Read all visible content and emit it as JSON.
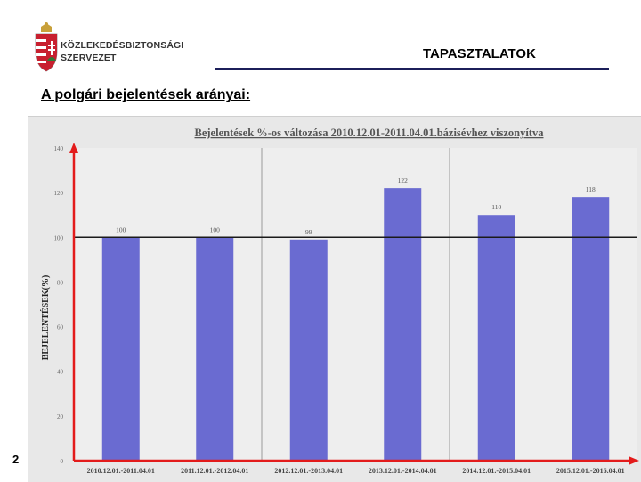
{
  "header": {
    "org_line1": "KÖZLEKEDÉSBIZTONSÁGI",
    "org_line2": "SZERVEZET",
    "section_title": "TAPASZTALATOK"
  },
  "subtitle": "A polgári bejelentések arányai:",
  "page_number": "2",
  "colors": {
    "bar": "#6a6bd1",
    "axis": "#e31b1b",
    "reference_line": "#1a1a1a",
    "header_rule": "#1c1f5a"
  },
  "chart_data": {
    "type": "bar",
    "title": "Bejelentések %-os változása 2010.12.01-2011.04.01.bázisévhez viszonyítva",
    "ylabel": "BEJELENTÉSEK(%)",
    "xlabel": "",
    "categories": [
      "2010.12.01.-2011.04.01",
      "2011.12.01.-2012.04.01",
      "2012.12.01.-2013.04.01",
      "2013.12.01.-2014.04.01",
      "2014.12.01.-2015.04.01",
      "2015.12.01.-2016.04.01"
    ],
    "values": [
      100,
      100,
      99,
      122,
      110,
      118
    ],
    "value_labels": [
      "100",
      "100",
      "99",
      "122",
      "110",
      "118"
    ],
    "ylim": [
      0,
      140
    ],
    "yticks": [
      "0",
      "20",
      "40",
      "60",
      "80",
      "100",
      "120",
      "140"
    ],
    "reference_value": 100,
    "grid": "vertical separators",
    "legend": "none"
  }
}
